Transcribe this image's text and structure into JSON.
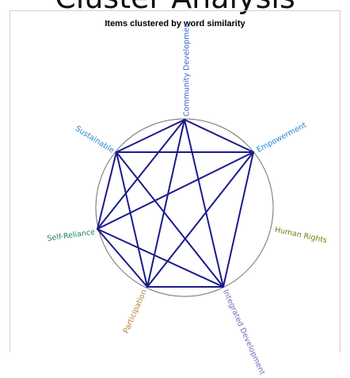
{
  "page": {
    "header_text": "Cluster Analysis"
  },
  "chart": {
    "title": "Items clustered by word similarity",
    "circle_color": "#707070",
    "edge_color": "#1a1a8c"
  },
  "chart_data": {
    "type": "network",
    "title": "Items clustered by word similarity",
    "nodes": [
      {
        "id": "community",
        "label": "Community Developmen",
        "color": "#3a64c4"
      },
      {
        "id": "empowerment",
        "label": "Empowerment",
        "color": "#1e88d6"
      },
      {
        "id": "human_rights",
        "label": "Human Rights",
        "color": "#7a7a10"
      },
      {
        "id": "integrated",
        "label": "Integrated Development",
        "color": "#7a6ab8"
      },
      {
        "id": "participation",
        "label": "Participation",
        "color": "#b5823a"
      },
      {
        "id": "self_reliance",
        "label": "Self-Reliance",
        "color": "#1d7d6e"
      },
      {
        "id": "sustainable",
        "label": "Sustainable",
        "color": "#1e88d6"
      }
    ],
    "edges": [
      [
        "community",
        "sustainable"
      ],
      [
        "community",
        "empowerment"
      ],
      [
        "community",
        "self_reliance"
      ],
      [
        "community",
        "participation"
      ],
      [
        "community",
        "integrated"
      ],
      [
        "sustainable",
        "empowerment"
      ],
      [
        "sustainable",
        "self_reliance"
      ],
      [
        "sustainable",
        "participation"
      ],
      [
        "sustainable",
        "integrated"
      ],
      [
        "empowerment",
        "self_reliance"
      ],
      [
        "empowerment",
        "participation"
      ],
      [
        "empowerment",
        "integrated"
      ],
      [
        "self_reliance",
        "participation"
      ],
      [
        "self_reliance",
        "integrated"
      ],
      [
        "participation",
        "integrated"
      ]
    ]
  }
}
